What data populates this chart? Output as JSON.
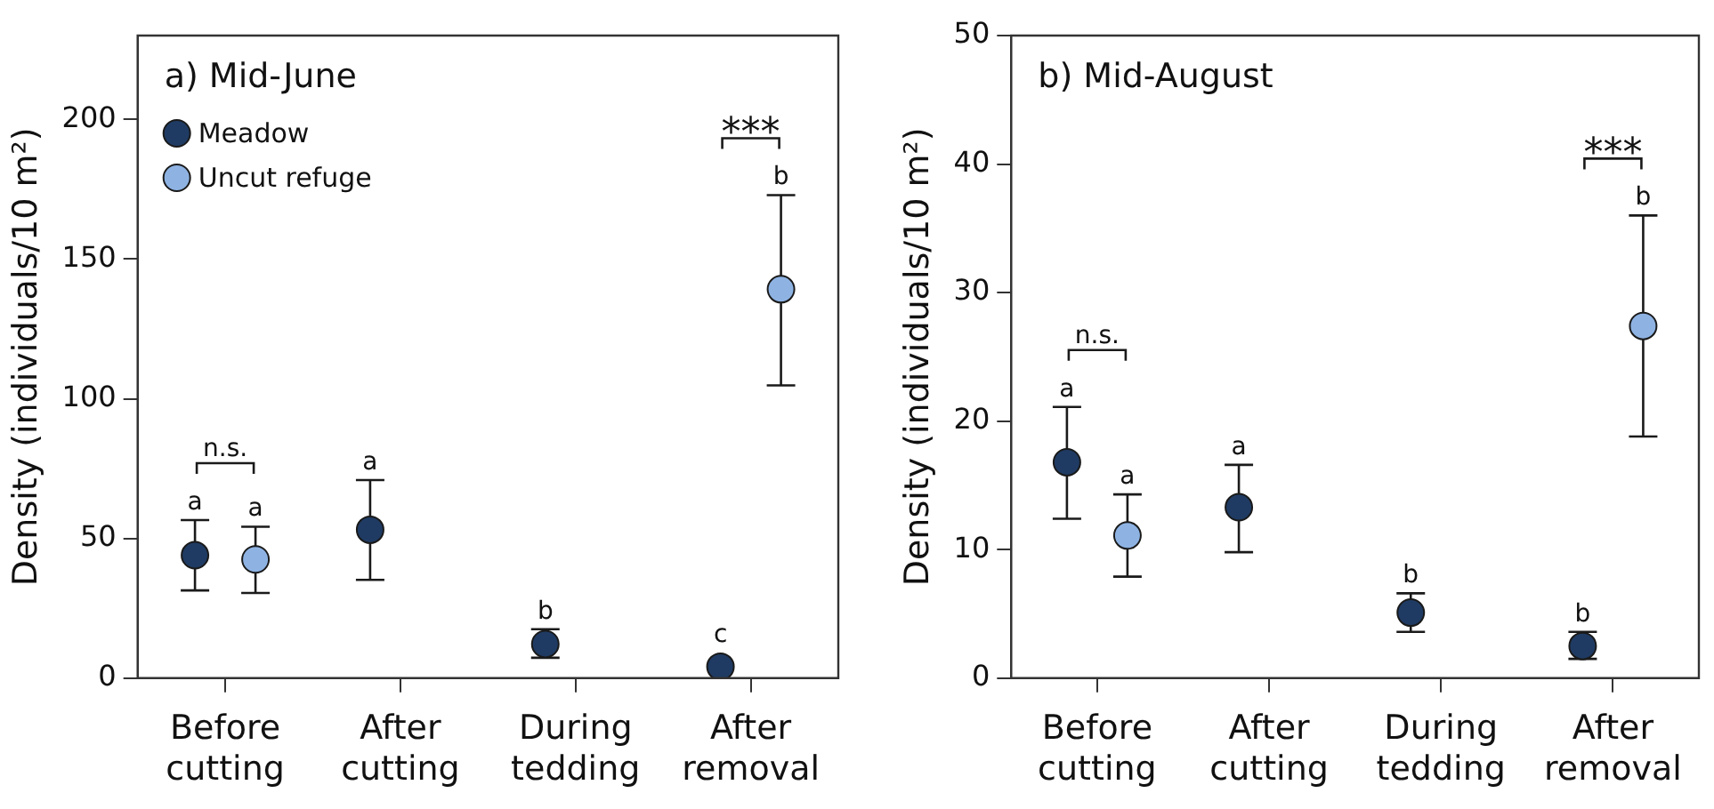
{
  "chart_data": [
    {
      "type": "scatter",
      "title": "a) Mid-June",
      "ylabel": "Density (individuals/10 m²)",
      "categories": [
        "Before cutting",
        "After cutting",
        "During tedding",
        "After removal"
      ],
      "ylim": [
        0,
        230
      ],
      "yticks": [
        0,
        50,
        100,
        150,
        200
      ],
      "legend": "top left",
      "marker": "circle",
      "series": [
        {
          "name": "Meadow",
          "color": "#1f3b63",
          "values": [
            44,
            53.1,
            12.2,
            4.1
          ],
          "errors": [
            [
              31.4,
              56.6
            ],
            [
              35.2,
              70.9
            ],
            [
              7.3,
              17.5
            ],
            null
          ]
        },
        {
          "name": "Uncut refuge",
          "color": "#8eb3e3",
          "values": [
            42.5,
            null,
            null,
            139.2
          ],
          "errors": [
            [
              30.5,
              54.2
            ],
            null,
            null,
            [
              104.8,
              172.9
            ]
          ]
        }
      ],
      "annotations": [
        "a",
        "a",
        "a",
        "b",
        "c",
        "b",
        "n.s.",
        "***"
      ]
    },
    {
      "type": "scatter",
      "title": "b) Mid-August",
      "ylabel": "Density (individuals/10 m²)",
      "categories": [
        "Before cutting",
        "After cutting",
        "During tedding",
        "After removal"
      ],
      "ylim": [
        0,
        50
      ],
      "yticks": [
        0,
        10,
        20,
        30,
        40,
        50
      ],
      "marker": "circle",
      "series": [
        {
          "color": "#1f3b63",
          "values": [
            16.8,
            13.3,
            5.1,
            2.5
          ],
          "errors": [
            [
              12.4,
              21.1
            ],
            [
              9.8,
              16.6
            ],
            [
              3.6,
              6.6
            ],
            [
              1.5,
              3.6
            ]
          ]
        },
        {
          "color": "#8eb3e3",
          "values": [
            11.1,
            null,
            null,
            27.4
          ],
          "errors": [
            [
              7.9,
              14.3
            ],
            null,
            null,
            [
              18.8,
              36.0
            ]
          ]
        }
      ],
      "annotations": [
        "a",
        "a",
        "a",
        "b",
        "b",
        "b",
        "n.s.",
        "***"
      ]
    }
  ]
}
